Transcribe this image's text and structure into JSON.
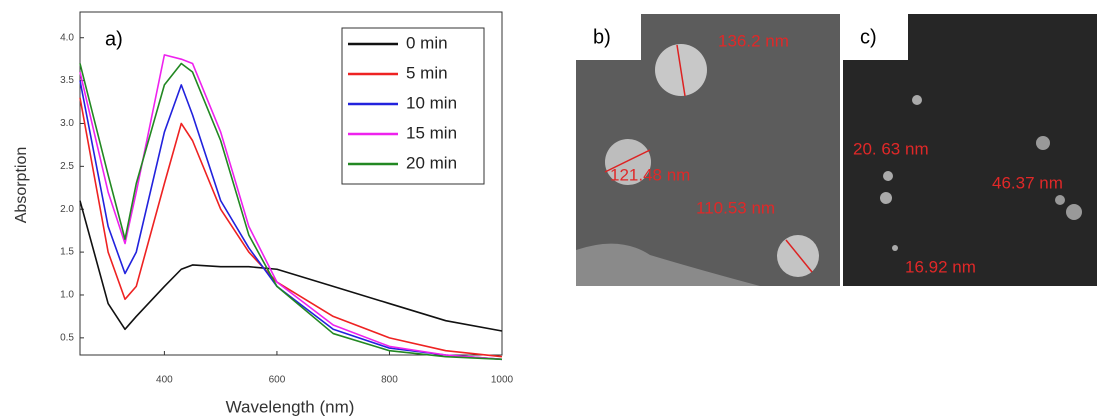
{
  "chart_data": {
    "type": "line",
    "panel_label": "a)",
    "x_label": "Wavelength (nm)",
    "y_label": "Absorption",
    "x": [
      250,
      300,
      330,
      350,
      400,
      430,
      450,
      500,
      550,
      600,
      700,
      800,
      900,
      1000
    ],
    "series": [
      {
        "name": "0 min",
        "color": "#111111",
        "values": [
          2.1,
          0.9,
          0.6,
          0.75,
          1.1,
          1.3,
          1.35,
          1.33,
          1.33,
          1.3,
          1.1,
          0.9,
          0.7,
          0.58
        ]
      },
      {
        "name": "5 min",
        "color": "#ee2222",
        "values": [
          3.3,
          1.5,
          0.95,
          1.1,
          2.3,
          3.0,
          2.8,
          2.0,
          1.5,
          1.15,
          0.75,
          0.5,
          0.35,
          0.28
        ]
      },
      {
        "name": "10 min",
        "color": "#2222dd",
        "values": [
          3.5,
          1.8,
          1.25,
          1.5,
          2.9,
          3.45,
          3.1,
          2.1,
          1.55,
          1.1,
          0.6,
          0.38,
          0.3,
          0.25
        ]
      },
      {
        "name": "15 min",
        "color": "#ee22ee",
        "values": [
          3.6,
          2.2,
          1.6,
          2.2,
          3.8,
          3.75,
          3.7,
          2.9,
          1.8,
          1.15,
          0.65,
          0.4,
          0.3,
          0.25
        ]
      },
      {
        "name": "20 min",
        "color": "#228822",
        "values": [
          3.7,
          2.4,
          1.65,
          2.3,
          3.45,
          3.7,
          3.6,
          2.8,
          1.7,
          1.1,
          0.55,
          0.35,
          0.28,
          0.25
        ]
      }
    ],
    "xlim": [
      250,
      1000
    ],
    "xticks": [
      400,
      600,
      800,
      1000
    ],
    "ylim": [
      0.3,
      4.3
    ],
    "yticks": [
      {
        "value": 0.5,
        "label": "0.5"
      },
      {
        "value": 1,
        "label": "1.0"
      },
      {
        "value": 1.5,
        "label": "1.5"
      },
      {
        "value": 2,
        "label": "2.0"
      },
      {
        "value": 2.5,
        "label": "2.5"
      },
      {
        "value": 3,
        "label": "3.0"
      },
      {
        "value": 3.5,
        "label": "3.5"
      },
      {
        "value": 4,
        "label": "4.0"
      }
    ],
    "grid": false,
    "legend": "upper right"
  },
  "panels": [
    {
      "label": "b)",
      "annotations": [
        "136.2 nm",
        "121.48 nm",
        "110.53 nm"
      ]
    },
    {
      "label": "c)",
      "annotations": [
        "20. 63 nm",
        "46.37 nm",
        "16.92 nm"
      ]
    }
  ]
}
